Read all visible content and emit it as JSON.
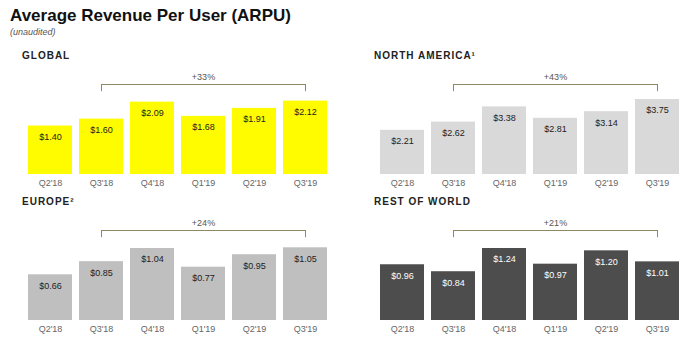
{
  "title": "Average Revenue Per User (ARPU)",
  "subtitle": "(unaudited)",
  "chart_data": [
    {
      "type": "bar",
      "title": "GLOBAL",
      "categories": [
        "Q2'18",
        "Q3'18",
        "Q4'18",
        "Q1'19",
        "Q2'19",
        "Q3'19"
      ],
      "values": [
        1.4,
        1.6,
        2.09,
        1.68,
        1.91,
        2.12
      ],
      "value_labels": [
        "$1.40",
        "$1.60",
        "$2.09",
        "$1.68",
        "$1.91",
        "$2.12"
      ],
      "color": "#fffc00",
      "ylim": [
        0,
        2.6
      ],
      "data_labels": true,
      "tick_labels": "x",
      "annotations": [
        {
          "text": "+33%",
          "from": "Q3'18",
          "to": "Q3'19"
        }
      ]
    },
    {
      "type": "bar",
      "title": "NORTH AMERICA¹",
      "categories": [
        "Q2'18",
        "Q3'18",
        "Q4'18",
        "Q1'19",
        "Q2'19",
        "Q3'19"
      ],
      "values": [
        2.21,
        2.62,
        3.38,
        2.81,
        3.14,
        3.75
      ],
      "value_labels": [
        "$2.21",
        "$2.62",
        "$3.38",
        "$2.81",
        "$3.14",
        "$3.75"
      ],
      "color": "#d9d9d9",
      "ylim": [
        0,
        4.5
      ],
      "data_labels": true,
      "tick_labels": "x",
      "annotations": [
        {
          "text": "+43%",
          "from": "Q3'18",
          "to": "Q3'19"
        }
      ]
    },
    {
      "type": "bar",
      "title": "EUROPE²",
      "categories": [
        "Q2'18",
        "Q3'18",
        "Q4'18",
        "Q1'19",
        "Q2'19",
        "Q3'19"
      ],
      "values": [
        0.66,
        0.85,
        1.04,
        0.77,
        0.95,
        1.05
      ],
      "value_labels": [
        "$0.66",
        "$0.85",
        "$1.04",
        "$0.77",
        "$0.95",
        "$1.05"
      ],
      "color": "#bfbfbf",
      "ylim": [
        0,
        1.3
      ],
      "data_labels": true,
      "tick_labels": "x",
      "annotations": [
        {
          "text": "+24%",
          "from": "Q3'18",
          "to": "Q3'19"
        }
      ]
    },
    {
      "type": "bar",
      "title": "REST OF WORLD",
      "categories": [
        "Q2'18",
        "Q3'18",
        "Q4'18",
        "Q1'19",
        "Q2'19",
        "Q3'19"
      ],
      "values": [
        0.96,
        0.84,
        1.24,
        0.97,
        1.2,
        1.01
      ],
      "value_labels": [
        "$0.96",
        "$0.84",
        "$1.24",
        "$0.97",
        "$1.20",
        "$1.01"
      ],
      "color": "#4d4d4d",
      "ylim": [
        0,
        1.55
      ],
      "data_labels": true,
      "tick_labels": "x",
      "annotations": [
        {
          "text": "+21%",
          "from": "Q3'18",
          "to": "Q3'19"
        }
      ]
    }
  ]
}
